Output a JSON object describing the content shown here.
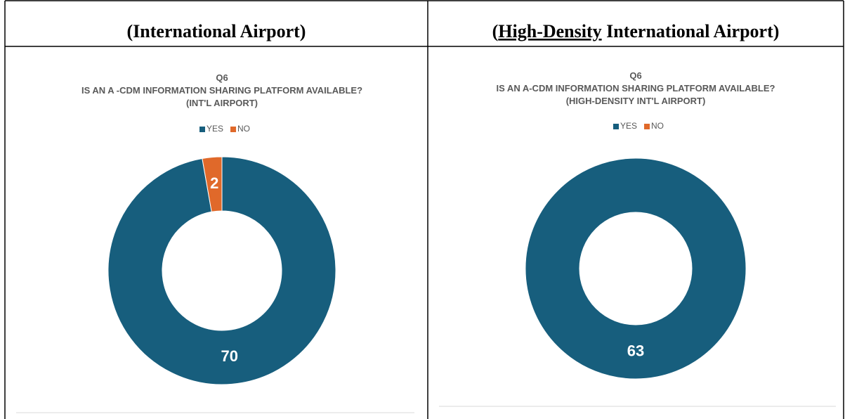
{
  "table": {
    "headers": [
      {
        "text": "(International Airport)"
      },
      {
        "prefix": "(",
        "underlined": "High-Density",
        "suffix": " International Airport)"
      }
    ]
  },
  "chart_data": [
    {
      "type": "donut",
      "title": [
        "Q6",
        "IS AN A -CDM INFORMATION SHARING PLATFORM AVAILABLE?",
        "(INT'L AIRPORT)"
      ],
      "categories": [
        "YES",
        "NO"
      ],
      "values": [
        70,
        2
      ],
      "colors": [
        "#175e7d",
        "#e0692a"
      ],
      "legend": "top"
    },
    {
      "type": "donut",
      "title": [
        "Q6",
        "IS AN A-CDM INFORMATION SHARING PLATFORM AVAILABLE?",
        "(HIGH-DENSITY INT'L AIRPORT)"
      ],
      "categories": [
        "YES",
        "NO"
      ],
      "values": [
        63,
        0
      ],
      "colors": [
        "#175e7d",
        "#e0692a"
      ],
      "legend": "top"
    }
  ]
}
